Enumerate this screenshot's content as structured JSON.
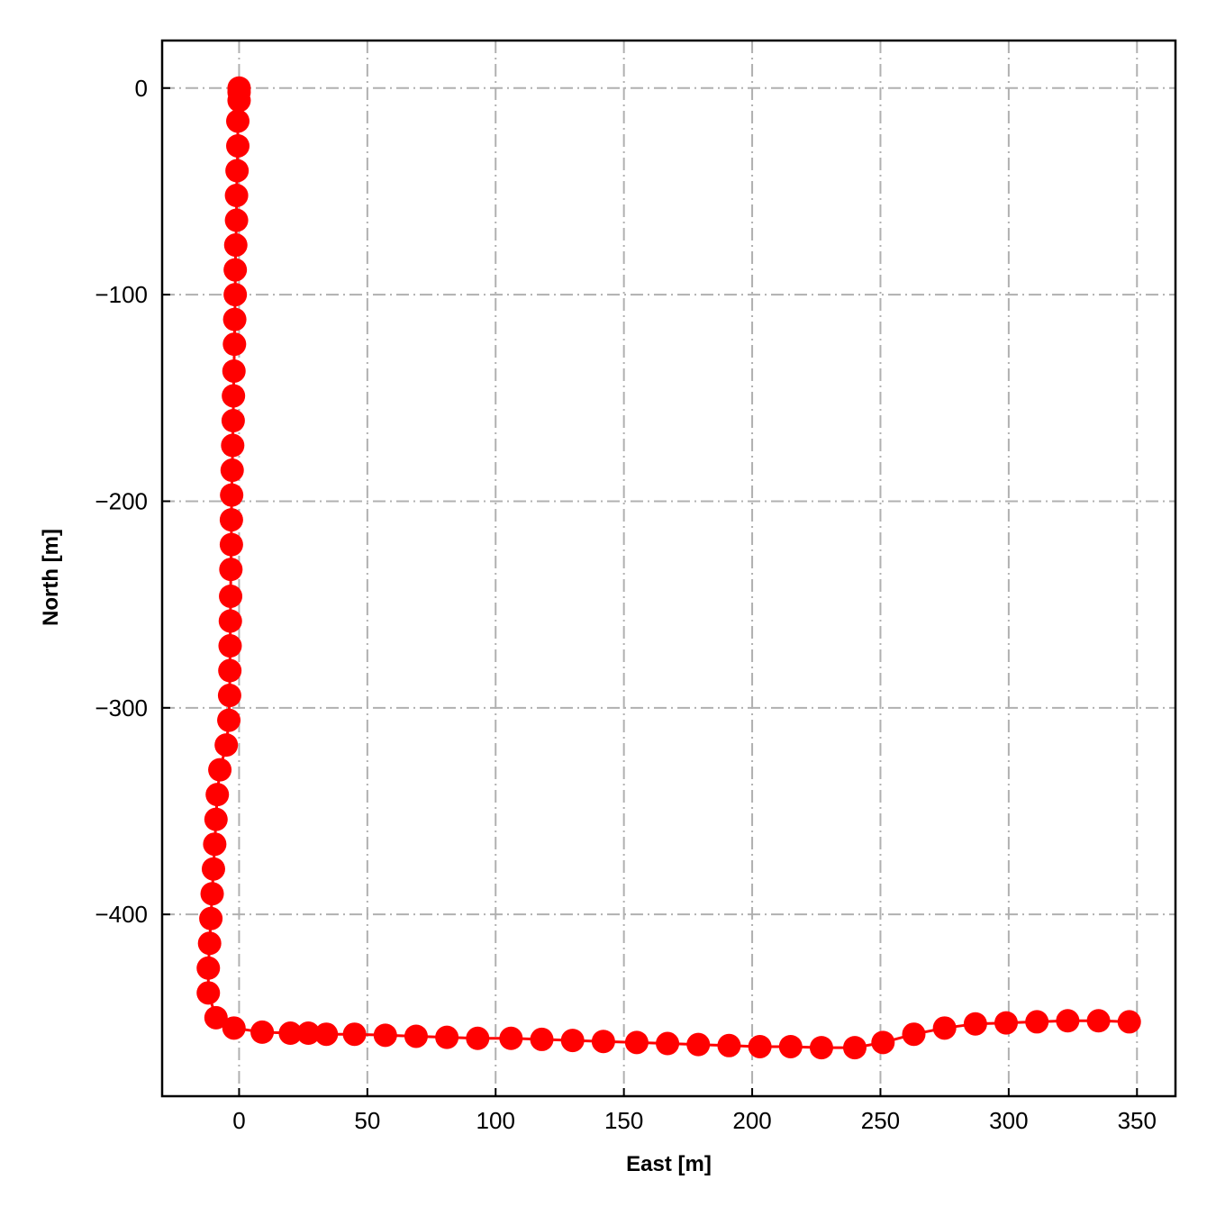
{
  "chart_data": {
    "type": "line",
    "title": "",
    "xlabel": "East [m]",
    "ylabel": "North [m]",
    "xlim": [
      -30,
      365
    ],
    "ylim": [
      -488,
      23
    ],
    "x_ticks": [
      0,
      50,
      100,
      150,
      200,
      250,
      300,
      350
    ],
    "y_ticks": [
      0,
      -100,
      -200,
      -300,
      -400
    ],
    "x_tick_labels": [
      "0",
      "50",
      "100",
      "150",
      "200",
      "250",
      "300",
      "350"
    ],
    "y_tick_labels": [
      "0",
      "−100",
      "−200",
      "−300",
      "−400"
    ],
    "grid": true,
    "legend": "none",
    "series": [
      {
        "color": "#ff0000",
        "marker": "circle",
        "points": [
          [
            0,
            0
          ],
          [
            0,
            -2
          ],
          [
            0,
            -6
          ],
          [
            -0.5,
            -16
          ],
          [
            -0.5,
            -28
          ],
          [
            -0.8,
            -40
          ],
          [
            -1,
            -52
          ],
          [
            -1,
            -64
          ],
          [
            -1.3,
            -76
          ],
          [
            -1.5,
            -88
          ],
          [
            -1.5,
            -100
          ],
          [
            -1.7,
            -112
          ],
          [
            -1.8,
            -124
          ],
          [
            -2,
            -137
          ],
          [
            -2.2,
            -149
          ],
          [
            -2.3,
            -161
          ],
          [
            -2.5,
            -173
          ],
          [
            -2.7,
            -185
          ],
          [
            -2.9,
            -197
          ],
          [
            -3,
            -209
          ],
          [
            -3,
            -221
          ],
          [
            -3.2,
            -233
          ],
          [
            -3.3,
            -246
          ],
          [
            -3.4,
            -258
          ],
          [
            -3.5,
            -270
          ],
          [
            -3.6,
            -282
          ],
          [
            -3.7,
            -294
          ],
          [
            -4,
            -306
          ],
          [
            -5,
            -318
          ],
          [
            -7.5,
            -330
          ],
          [
            -8.5,
            -342
          ],
          [
            -9,
            -354
          ],
          [
            -9.5,
            -366
          ],
          [
            -10,
            -378
          ],
          [
            -10.5,
            -390
          ],
          [
            -11,
            -402
          ],
          [
            -11.5,
            -414
          ],
          [
            -12,
            -426
          ],
          [
            -12,
            -438
          ],
          [
            -9,
            -450
          ],
          [
            -2,
            -455
          ],
          [
            9,
            -457
          ],
          [
            20,
            -457.5
          ],
          [
            27,
            -457.5
          ],
          [
            34,
            -458
          ],
          [
            45,
            -458
          ],
          [
            57,
            -458.5
          ],
          [
            69,
            -459
          ],
          [
            81,
            -459.5
          ],
          [
            93,
            -460
          ],
          [
            106,
            -460
          ],
          [
            118,
            -460.5
          ],
          [
            130,
            -461
          ],
          [
            142,
            -461.5
          ],
          [
            155,
            -462
          ],
          [
            167,
            -462.5
          ],
          [
            179,
            -463
          ],
          [
            191,
            -463.5
          ],
          [
            203,
            -464
          ],
          [
            215,
            -464
          ],
          [
            227,
            -464.5
          ],
          [
            240,
            -464.5
          ],
          [
            251,
            -462
          ],
          [
            263,
            -458
          ],
          [
            275,
            -455
          ],
          [
            287,
            -453
          ],
          [
            299,
            -452.5
          ],
          [
            311,
            -452
          ],
          [
            323,
            -451.5
          ],
          [
            335,
            -451.5
          ],
          [
            347,
            -452
          ]
        ]
      }
    ]
  }
}
